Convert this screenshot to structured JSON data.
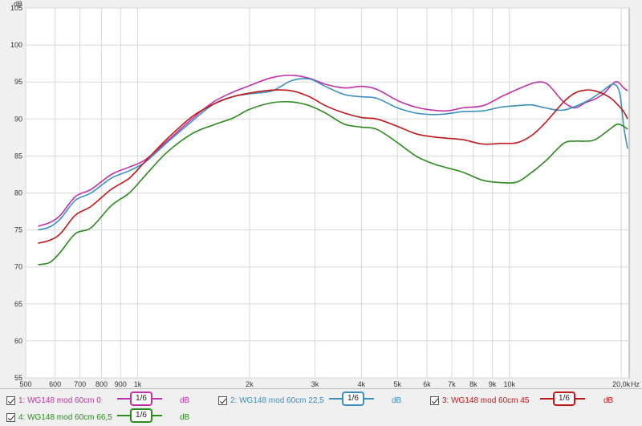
{
  "chart_data": {
    "type": "line",
    "ylabel": "dB",
    "xunit": "Hz",
    "xscale": "log",
    "xlim": [
      500,
      21000
    ],
    "ylim": [
      55,
      105
    ],
    "grid": true,
    "yticks": [
      55,
      60,
      65,
      70,
      75,
      80,
      85,
      90,
      95,
      100,
      105
    ],
    "xticks": [
      {
        "v": 500,
        "label": "500"
      },
      {
        "v": 600,
        "label": "600"
      },
      {
        "v": 700,
        "label": "700"
      },
      {
        "v": 800,
        "label": "800"
      },
      {
        "v": 900,
        "label": "900"
      },
      {
        "v": 1000,
        "label": "1k"
      },
      {
        "v": 2000,
        "label": "2k"
      },
      {
        "v": 3000,
        "label": "3k"
      },
      {
        "v": 4000,
        "label": "4k"
      },
      {
        "v": 5000,
        "label": "5k"
      },
      {
        "v": 6000,
        "label": "6k"
      },
      {
        "v": 7000,
        "label": "7k"
      },
      {
        "v": 8000,
        "label": "8k"
      },
      {
        "v": 9000,
        "label": "9k"
      },
      {
        "v": 10000,
        "label": "10k"
      },
      {
        "v": 20000,
        "label": "20,0k"
      }
    ],
    "series": [
      {
        "name": "1: WG148 mod 60cm 0",
        "color": "#c030a8",
        "points": [
          [
            540,
            75.5
          ],
          [
            580,
            76
          ],
          [
            620,
            77
          ],
          [
            680,
            79.5
          ],
          [
            750,
            80.5
          ],
          [
            850,
            82.5
          ],
          [
            950,
            83.5
          ],
          [
            1050,
            84.5
          ],
          [
            1200,
            87
          ],
          [
            1400,
            90
          ],
          [
            1600,
            92.3
          ],
          [
            1800,
            93.6
          ],
          [
            2000,
            94.5
          ],
          [
            2300,
            95.6
          ],
          [
            2600,
            95.9
          ],
          [
            2900,
            95.5
          ],
          [
            3200,
            94.7
          ],
          [
            3600,
            94.2
          ],
          [
            4000,
            94.4
          ],
          [
            4400,
            94
          ],
          [
            5000,
            92.5
          ],
          [
            5600,
            91.6
          ],
          [
            6200,
            91.2
          ],
          [
            6800,
            91.1
          ],
          [
            7500,
            91.5
          ],
          [
            8500,
            91.8
          ],
          [
            9500,
            93
          ],
          [
            10500,
            94
          ],
          [
            11500,
            94.8
          ],
          [
            12200,
            95
          ],
          [
            12800,
            94.5
          ],
          [
            14000,
            92.3
          ],
          [
            15000,
            91.5
          ],
          [
            16000,
            92.2
          ],
          [
            17000,
            92.7
          ],
          [
            18000,
            93.5
          ],
          [
            19000,
            94.8
          ],
          [
            19600,
            95
          ],
          [
            20300,
            94.2
          ],
          [
            20800,
            93.8
          ]
        ]
      },
      {
        "name": "2: WG148 mod 60cm 22,5",
        "color": "#3b8fc0",
        "points": [
          [
            540,
            75
          ],
          [
            580,
            75.4
          ],
          [
            620,
            76.5
          ],
          [
            680,
            79
          ],
          [
            750,
            80
          ],
          [
            850,
            82
          ],
          [
            950,
            83
          ],
          [
            1050,
            84.2
          ],
          [
            1200,
            86.8
          ],
          [
            1400,
            89.7
          ],
          [
            1600,
            92
          ],
          [
            1800,
            93
          ],
          [
            2000,
            93.4
          ],
          [
            2300,
            93.8
          ],
          [
            2600,
            95.2
          ],
          [
            2900,
            95.4
          ],
          [
            3200,
            94.4
          ],
          [
            3600,
            93.3
          ],
          [
            4000,
            93
          ],
          [
            4400,
            92.8
          ],
          [
            5000,
            91.5
          ],
          [
            5600,
            90.8
          ],
          [
            6200,
            90.6
          ],
          [
            6800,
            90.7
          ],
          [
            7500,
            91
          ],
          [
            8500,
            91.1
          ],
          [
            9500,
            91.6
          ],
          [
            10500,
            91.8
          ],
          [
            11500,
            91.9
          ],
          [
            12500,
            91.5
          ],
          [
            14000,
            91.2
          ],
          [
            16000,
            92.3
          ],
          [
            17500,
            93.5
          ],
          [
            19000,
            94.7
          ],
          [
            19800,
            93.5
          ],
          [
            20300,
            89
          ],
          [
            20800,
            86
          ]
        ]
      },
      {
        "name": "3: WG148 mod 60cm 45",
        "color": "#c01818",
        "points": [
          [
            540,
            73.2
          ],
          [
            580,
            73.6
          ],
          [
            620,
            74.5
          ],
          [
            680,
            77
          ],
          [
            750,
            78.2
          ],
          [
            850,
            80.5
          ],
          [
            950,
            82
          ],
          [
            1050,
            84.3
          ],
          [
            1200,
            87.3
          ],
          [
            1400,
            90.3
          ],
          [
            1600,
            92
          ],
          [
            1800,
            93
          ],
          [
            2000,
            93.5
          ],
          [
            2300,
            93.9
          ],
          [
            2600,
            93.8
          ],
          [
            2900,
            93
          ],
          [
            3200,
            91.8
          ],
          [
            3600,
            90.8
          ],
          [
            4000,
            90.2
          ],
          [
            4400,
            90
          ],
          [
            5000,
            89
          ],
          [
            5600,
            88
          ],
          [
            6200,
            87.6
          ],
          [
            6800,
            87.4
          ],
          [
            7500,
            87.2
          ],
          [
            8500,
            86.6
          ],
          [
            9500,
            86.7
          ],
          [
            10500,
            86.8
          ],
          [
            11500,
            87.8
          ],
          [
            12500,
            89.5
          ],
          [
            14000,
            92.3
          ],
          [
            15000,
            93.5
          ],
          [
            16000,
            93.9
          ],
          [
            17000,
            93.8
          ],
          [
            18500,
            93
          ],
          [
            19500,
            92
          ],
          [
            20300,
            91
          ],
          [
            20800,
            90
          ]
        ]
      },
      {
        "name": "4: WG148 mod 60cm 66,5",
        "color": "#2a8a1c",
        "points": [
          [
            540,
            70.3
          ],
          [
            580,
            70.6
          ],
          [
            620,
            72
          ],
          [
            680,
            74.5
          ],
          [
            750,
            75.3
          ],
          [
            850,
            78.3
          ],
          [
            950,
            80
          ],
          [
            1050,
            82.4
          ],
          [
            1200,
            85.5
          ],
          [
            1400,
            88
          ],
          [
            1600,
            89.2
          ],
          [
            1800,
            90.1
          ],
          [
            2000,
            91.3
          ],
          [
            2300,
            92.2
          ],
          [
            2600,
            92.3
          ],
          [
            2900,
            91.8
          ],
          [
            3200,
            90.8
          ],
          [
            3600,
            89.3
          ],
          [
            4000,
            88.9
          ],
          [
            4400,
            88.6
          ],
          [
            5000,
            86.8
          ],
          [
            5600,
            85
          ],
          [
            6200,
            84
          ],
          [
            6800,
            83.4
          ],
          [
            7500,
            82.8
          ],
          [
            8500,
            81.7
          ],
          [
            9500,
            81.4
          ],
          [
            10500,
            81.5
          ],
          [
            11500,
            82.8
          ],
          [
            12500,
            84.3
          ],
          [
            14000,
            86.7
          ],
          [
            15000,
            87
          ],
          [
            16000,
            87
          ],
          [
            17000,
            87.2
          ],
          [
            18500,
            88.5
          ],
          [
            19500,
            89.3
          ],
          [
            20300,
            89
          ],
          [
            20800,
            88.6
          ]
        ]
      }
    ]
  },
  "legend": {
    "items": [
      {
        "label": "1: WG148 mod 60cm 0",
        "smoothing": "1/6",
        "unit": "dB",
        "color": "#c030a8"
      },
      {
        "label": "2: WG148 mod 60cm 22,5",
        "smoothing": "1/6",
        "unit": "dB",
        "color": "#3b8fc0"
      },
      {
        "label": "3: WG148 mod 60cm 45",
        "smoothing": "1/6",
        "unit": "dB",
        "color": "#c01818"
      },
      {
        "label": "4: WG148 mod 60cm 66,5",
        "smoothing": "1/6",
        "unit": "dB",
        "color": "#2a8a1c"
      }
    ]
  }
}
